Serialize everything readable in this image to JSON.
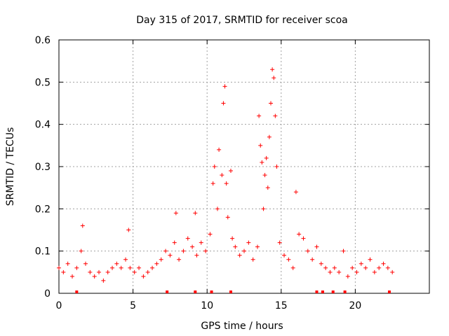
{
  "chart_data": {
    "type": "scatter",
    "title": "Day 315 of 2017, SRMTID for receiver scoa",
    "xlabel": "GPS time / hours",
    "ylabel": "SRMTID / TECUs",
    "xlim": [
      0,
      25
    ],
    "ylim": [
      0,
      0.6
    ],
    "xticks": [
      0,
      5,
      10,
      15,
      20
    ],
    "xtick_labels": [
      "0",
      "5",
      "10",
      "15",
      "20"
    ],
    "yticks": [
      0,
      0.1,
      0.2,
      0.3,
      0.4,
      0.5,
      0.6
    ],
    "ytick_labels": [
      "0",
      "0.1",
      "0.2",
      "0.3",
      "0.4",
      "0.5",
      "0.6"
    ],
    "grid": true,
    "marker": "+",
    "color": "#ff0000",
    "series": [
      {
        "name": "SRMTID scoa",
        "x": [
          0.0,
          0.3,
          0.6,
          0.9,
          1.2,
          1.5,
          1.6,
          1.8,
          2.1,
          2.4,
          2.7,
          3.0,
          3.3,
          3.6,
          3.9,
          4.2,
          4.5,
          4.7,
          4.8,
          5.1,
          5.4,
          5.7,
          6.0,
          6.3,
          6.6,
          6.9,
          7.2,
          7.5,
          7.8,
          7.9,
          8.1,
          8.4,
          8.7,
          9.0,
          9.2,
          9.3,
          9.6,
          9.9,
          10.2,
          10.4,
          10.5,
          10.7,
          10.8,
          11.0,
          11.1,
          11.2,
          11.3,
          11.4,
          11.6,
          11.7,
          11.9,
          12.2,
          12.5,
          12.8,
          13.1,
          13.4,
          13.5,
          13.6,
          13.7,
          13.8,
          13.9,
          14.0,
          14.1,
          14.2,
          14.3,
          14.4,
          14.5,
          14.6,
          14.7,
          14.9,
          15.2,
          15.5,
          15.8,
          16.0,
          16.2,
          16.5,
          16.8,
          17.1,
          17.4,
          17.7,
          18.0,
          18.3,
          18.6,
          18.9,
          19.2,
          19.5,
          19.8,
          20.1,
          20.4,
          20.7,
          21.0,
          21.3,
          21.6,
          21.9,
          22.2,
          22.5
        ],
        "y": [
          0.06,
          0.05,
          0.07,
          0.04,
          0.06,
          0.1,
          0.16,
          0.07,
          0.05,
          0.04,
          0.05,
          0.03,
          0.05,
          0.06,
          0.07,
          0.06,
          0.08,
          0.15,
          0.06,
          0.05,
          0.06,
          0.04,
          0.05,
          0.06,
          0.07,
          0.08,
          0.1,
          0.09,
          0.12,
          0.19,
          0.08,
          0.1,
          0.13,
          0.11,
          0.19,
          0.09,
          0.12,
          0.1,
          0.14,
          0.26,
          0.3,
          0.2,
          0.34,
          0.28,
          0.45,
          0.49,
          0.26,
          0.18,
          0.29,
          0.13,
          0.11,
          0.09,
          0.1,
          0.12,
          0.08,
          0.11,
          0.42,
          0.35,
          0.31,
          0.2,
          0.28,
          0.32,
          0.25,
          0.37,
          0.45,
          0.53,
          0.51,
          0.42,
          0.3,
          0.12,
          0.09,
          0.08,
          0.06,
          0.24,
          0.14,
          0.13,
          0.1,
          0.08,
          0.11,
          0.07,
          0.06,
          0.05,
          0.06,
          0.05,
          0.1,
          0.04,
          0.06,
          0.05,
          0.07,
          0.06,
          0.08,
          0.05,
          0.06,
          0.07,
          0.06,
          0.05
        ]
      }
    ],
    "rug_x": [
      1.2,
      7.3,
      9.2,
      10.3,
      11.6,
      17.4,
      17.8,
      18.5,
      19.3,
      22.3
    ]
  }
}
